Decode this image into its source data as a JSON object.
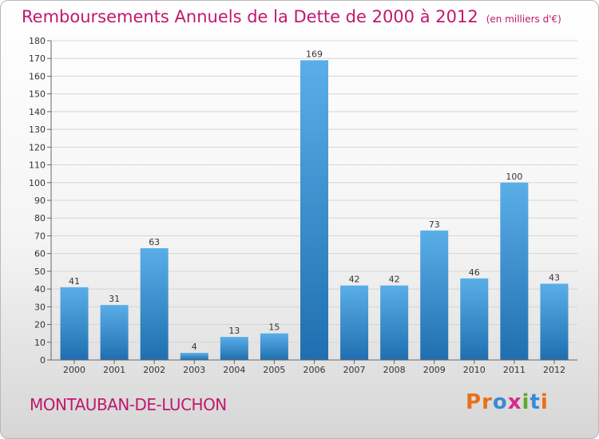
{
  "header": {
    "title": "Remboursements Annuels de la Dette de 2000 à 2012",
    "unit": "(en milliers d'€)"
  },
  "footer": {
    "commune": "MONTAUBAN-DE-LUCHON",
    "logo_text": "Proxiti"
  },
  "colors": {
    "title": "#c0186e",
    "bar_top": "#5aaee8",
    "bar_bottom": "#1f6fb0",
    "grid": "#d6d6d6",
    "axis": "#666666",
    "logo_letters": [
      "#e8701a",
      "#e8701a",
      "#3a8ad6",
      "#d62a8a",
      "#62a82a",
      "#3a8ad6",
      "#e8701a"
    ]
  },
  "chart_data": {
    "type": "bar",
    "title": "Remboursements Annuels de la Dette de 2000 à 2012",
    "xlabel": "",
    "ylabel": "",
    "categories": [
      "2000",
      "2001",
      "2002",
      "2003",
      "2004",
      "2005",
      "2006",
      "2007",
      "2008",
      "2009",
      "2010",
      "2011",
      "2012"
    ],
    "values": [
      41,
      31,
      63,
      4,
      13,
      15,
      169,
      42,
      42,
      73,
      46,
      100,
      43
    ],
    "ylim": [
      0,
      180
    ],
    "yticks": [
      0,
      10,
      20,
      30,
      40,
      50,
      60,
      70,
      80,
      90,
      100,
      110,
      120,
      130,
      140,
      150,
      160,
      170,
      180
    ],
    "grid": true,
    "show_data_labels": true
  }
}
